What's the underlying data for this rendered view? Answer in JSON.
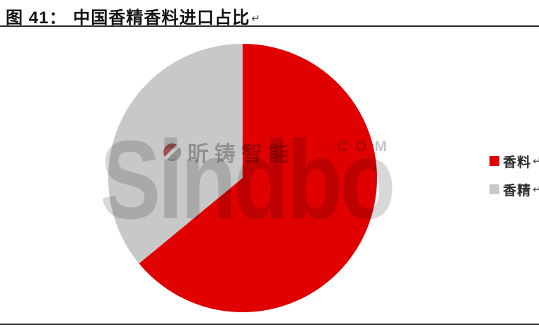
{
  "page": {
    "background": "#ffffff",
    "rule_color": "#2b2b2b"
  },
  "header": {
    "figure_label": "图 41：",
    "title": "中国香精香料进口占比",
    "paragraph_mark": "↵"
  },
  "chart_data": {
    "type": "pie",
    "title": "中国香精香料进口占比",
    "series": [
      {
        "label": "香料",
        "value": 64,
        "color": "#e00000"
      },
      {
        "label": "香精",
        "value": 36,
        "color": "#c8c8c8"
      }
    ],
    "unit": "percent-estimated-from-arc",
    "start_angle_deg": 0,
    "direction": "clockwise",
    "legend_position": "right",
    "legend": [
      {
        "label": "香料",
        "color": "#e00000"
      },
      {
        "label": "香精",
        "color": "#c8c8c8"
      }
    ]
  },
  "watermark": {
    "brand": "Sindbo",
    "cn_text": "昕铸智能",
    "suffix": "·COM",
    "dot_icon": "red-gray-split-circle-icon"
  }
}
